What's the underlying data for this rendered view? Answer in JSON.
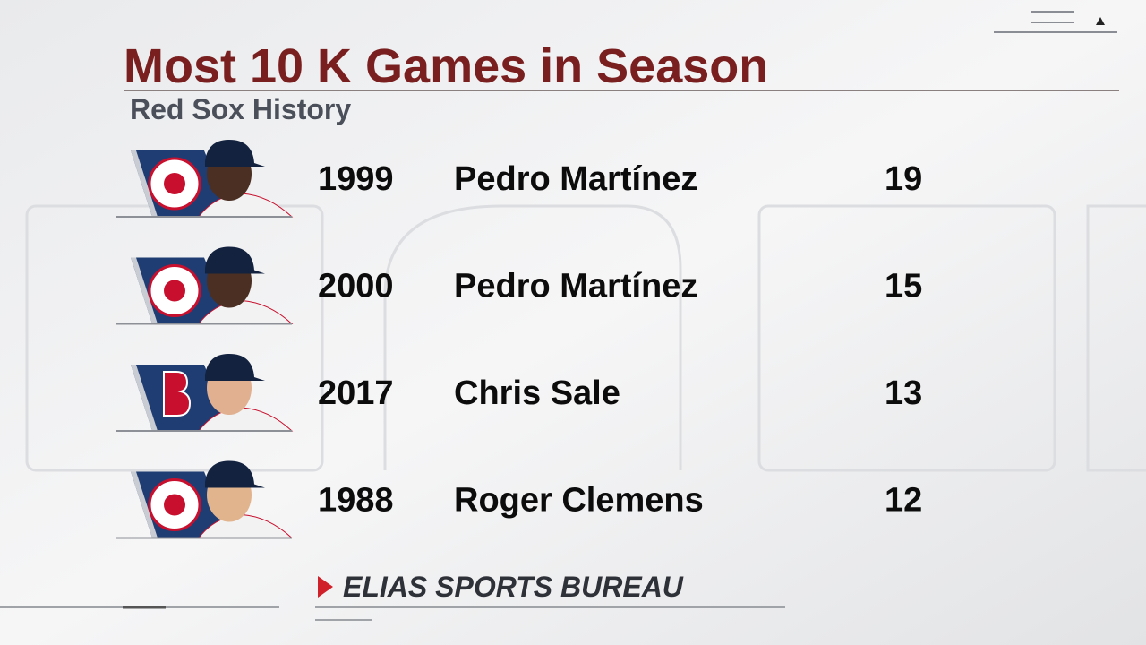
{
  "header": {
    "title": "Most 10 K Games in Season",
    "subtitle": "Red Sox History"
  },
  "table": {
    "rows": [
      [
        "1999",
        "Pedro Martínez",
        "19"
      ],
      [
        "2000",
        "Pedro Martínez",
        "15"
      ],
      [
        "2017",
        "Chris Sale",
        "13"
      ],
      [
        "1988",
        "Roger Clemens",
        "12"
      ]
    ]
  },
  "footer": {
    "source": "ELIAS SPORTS BUREAU"
  }
}
